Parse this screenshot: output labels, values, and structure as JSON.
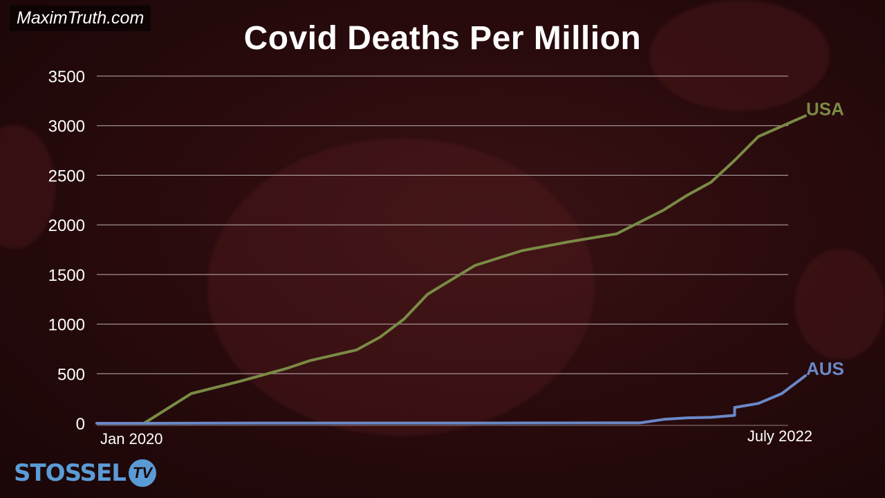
{
  "watermark": "MaximTruth.com",
  "logo": {
    "text": "STOSSEL",
    "badge": "TV"
  },
  "colors": {
    "usa": "#7a8b45",
    "aus": "#6a88c8",
    "grid": "#d8cfcf",
    "text": "#ffffff"
  },
  "chart_data": {
    "type": "line",
    "title": "Covid Deaths Per Million",
    "xlabel": "",
    "ylabel": "",
    "x_tick_labels": [
      "Jan 2020",
      "July 2022"
    ],
    "x_range": [
      "2020-01",
      "2022-07"
    ],
    "ylim": [
      0,
      3500
    ],
    "yticks": [
      0,
      500,
      1000,
      1500,
      2000,
      2500,
      3000,
      3500
    ],
    "grid": true,
    "series": [
      {
        "name": "USA",
        "color": "#7a8b45",
        "points": [
          [
            "2020-01",
            0
          ],
          [
            "2020-02",
            0
          ],
          [
            "2020-03",
            0
          ],
          [
            "2020-04",
            150
          ],
          [
            "2020-05",
            300
          ],
          [
            "2020-07",
            420
          ],
          [
            "2020-09",
            550
          ],
          [
            "2020-10",
            630
          ],
          [
            "2020-12",
            740
          ],
          [
            "2021-01",
            870
          ],
          [
            "2021-02",
            1050
          ],
          [
            "2021-03",
            1300
          ],
          [
            "2021-05",
            1590
          ],
          [
            "2021-07",
            1740
          ],
          [
            "2021-09",
            1830
          ],
          [
            "2021-11",
            1910
          ],
          [
            "2022-01",
            2150
          ],
          [
            "2022-02",
            2300
          ],
          [
            "2022-03",
            2430
          ],
          [
            "2022-04",
            2650
          ],
          [
            "2022-05",
            2890
          ],
          [
            "2022-07",
            3100
          ]
        ]
      },
      {
        "name": "AUS",
        "color": "#6a88c8",
        "points": [
          [
            "2020-01",
            0
          ],
          [
            "2020-03",
            0
          ],
          [
            "2020-06",
            2
          ],
          [
            "2020-12",
            3
          ],
          [
            "2021-06",
            3
          ],
          [
            "2021-12",
            4
          ],
          [
            "2022-01",
            40
          ],
          [
            "2022-02",
            55
          ],
          [
            "2022-03",
            60
          ],
          [
            "2022-04",
            80
          ],
          [
            "2022-04",
            160
          ],
          [
            "2022-05",
            200
          ],
          [
            "2022-06",
            300
          ],
          [
            "2022-07",
            480
          ]
        ]
      }
    ]
  }
}
